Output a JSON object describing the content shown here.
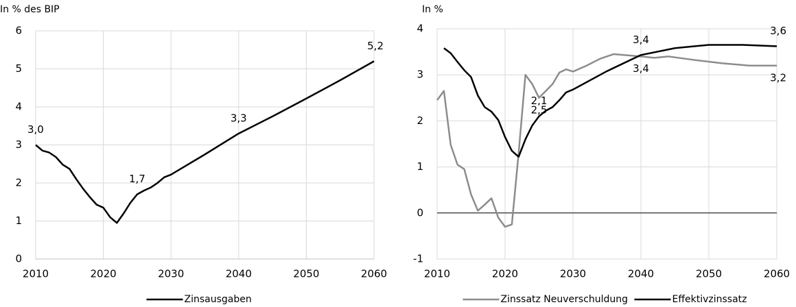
{
  "chart_data": [
    {
      "type": "line",
      "y_label": "In % des BIP",
      "xlim": [
        2010,
        2060
      ],
      "xticks": [
        2010,
        2020,
        2030,
        2040,
        2050,
        2060
      ],
      "ylim": [
        0,
        6
      ],
      "yticks": [
        0,
        1,
        2,
        3,
        4,
        5,
        6
      ],
      "grid": true,
      "series": [
        {
          "name": "Zinsausgaben",
          "color": "#000000",
          "x": [
            2010,
            2011,
            2012,
            2013,
            2014,
            2015,
            2016,
            2017,
            2018,
            2019,
            2020,
            2021,
            2022,
            2023,
            2024,
            2025,
            2026,
            2027,
            2028,
            2029,
            2030,
            2035,
            2040,
            2045,
            2050,
            2055,
            2060
          ],
          "values": [
            3.0,
            2.85,
            2.8,
            2.68,
            2.48,
            2.37,
            2.1,
            1.85,
            1.63,
            1.43,
            1.35,
            1.1,
            0.95,
            1.2,
            1.48,
            1.7,
            1.8,
            1.88,
            2.0,
            2.15,
            2.22,
            2.75,
            3.3,
            3.75,
            4.22,
            4.7,
            5.2
          ],
          "value_labels": [
            "3,0",
            null,
            null,
            null,
            null,
            null,
            null,
            null,
            null,
            null,
            null,
            null,
            null,
            null,
            null,
            "1,7",
            null,
            null,
            null,
            null,
            null,
            null,
            "3,3",
            null,
            null,
            null,
            "5,2"
          ]
        }
      ]
    },
    {
      "type": "line",
      "y_label": "In %",
      "xlim": [
        2010,
        2060
      ],
      "xticks": [
        2010,
        2020,
        2030,
        2040,
        2050,
        2060
      ],
      "ylim": [
        -1,
        4
      ],
      "yticks": [
        -1,
        0,
        1,
        2,
        3,
        4
      ],
      "grid": true,
      "series": [
        {
          "name": "Zinssatz Neuverschuldung",
          "color": "#8c8c8c",
          "x": [
            2010,
            2011,
            2012,
            2013,
            2014,
            2015,
            2016,
            2017,
            2018,
            2019,
            2020,
            2021,
            2022,
            2023,
            2024,
            2025,
            2026,
            2027,
            2028,
            2029,
            2030,
            2032,
            2034,
            2036,
            2040,
            2042,
            2044,
            2048,
            2052,
            2056,
            2060
          ],
          "values": [
            2.45,
            2.65,
            1.48,
            1.05,
            0.95,
            0.4,
            0.05,
            0.18,
            0.32,
            -0.1,
            -0.3,
            -0.25,
            1.3,
            3.0,
            2.8,
            2.5,
            2.65,
            2.8,
            3.05,
            3.12,
            3.07,
            3.2,
            3.35,
            3.45,
            3.4,
            3.37,
            3.4,
            3.32,
            3.25,
            3.2,
            3.2
          ],
          "value_labels": [
            null,
            null,
            null,
            null,
            null,
            null,
            null,
            null,
            null,
            null,
            null,
            null,
            null,
            null,
            null,
            "2,5",
            null,
            null,
            null,
            null,
            null,
            null,
            null,
            null,
            "3,4",
            null,
            null,
            null,
            null,
            null,
            "3,2"
          ]
        },
        {
          "name": "Effektivzinssatz",
          "color": "#000000",
          "x": [
            2011,
            2012,
            2013,
            2014,
            2015,
            2016,
            2017,
            2018,
            2019,
            2020,
            2021,
            2022,
            2023,
            2024,
            2025,
            2026,
            2027,
            2028,
            2029,
            2030,
            2035,
            2040,
            2045,
            2050,
            2055,
            2060
          ],
          "values": [
            3.58,
            3.47,
            3.28,
            3.1,
            2.95,
            2.55,
            2.3,
            2.2,
            2.02,
            1.65,
            1.35,
            1.22,
            1.6,
            1.9,
            2.1,
            2.22,
            2.3,
            2.45,
            2.62,
            2.68,
            3.08,
            3.43,
            3.58,
            3.65,
            3.65,
            3.62
          ],
          "value_labels": [
            null,
            null,
            null,
            null,
            null,
            null,
            null,
            null,
            null,
            null,
            null,
            null,
            null,
            null,
            "2,1",
            null,
            null,
            null,
            null,
            null,
            null,
            "3,4",
            null,
            null,
            null,
            "3,6"
          ]
        }
      ]
    }
  ]
}
